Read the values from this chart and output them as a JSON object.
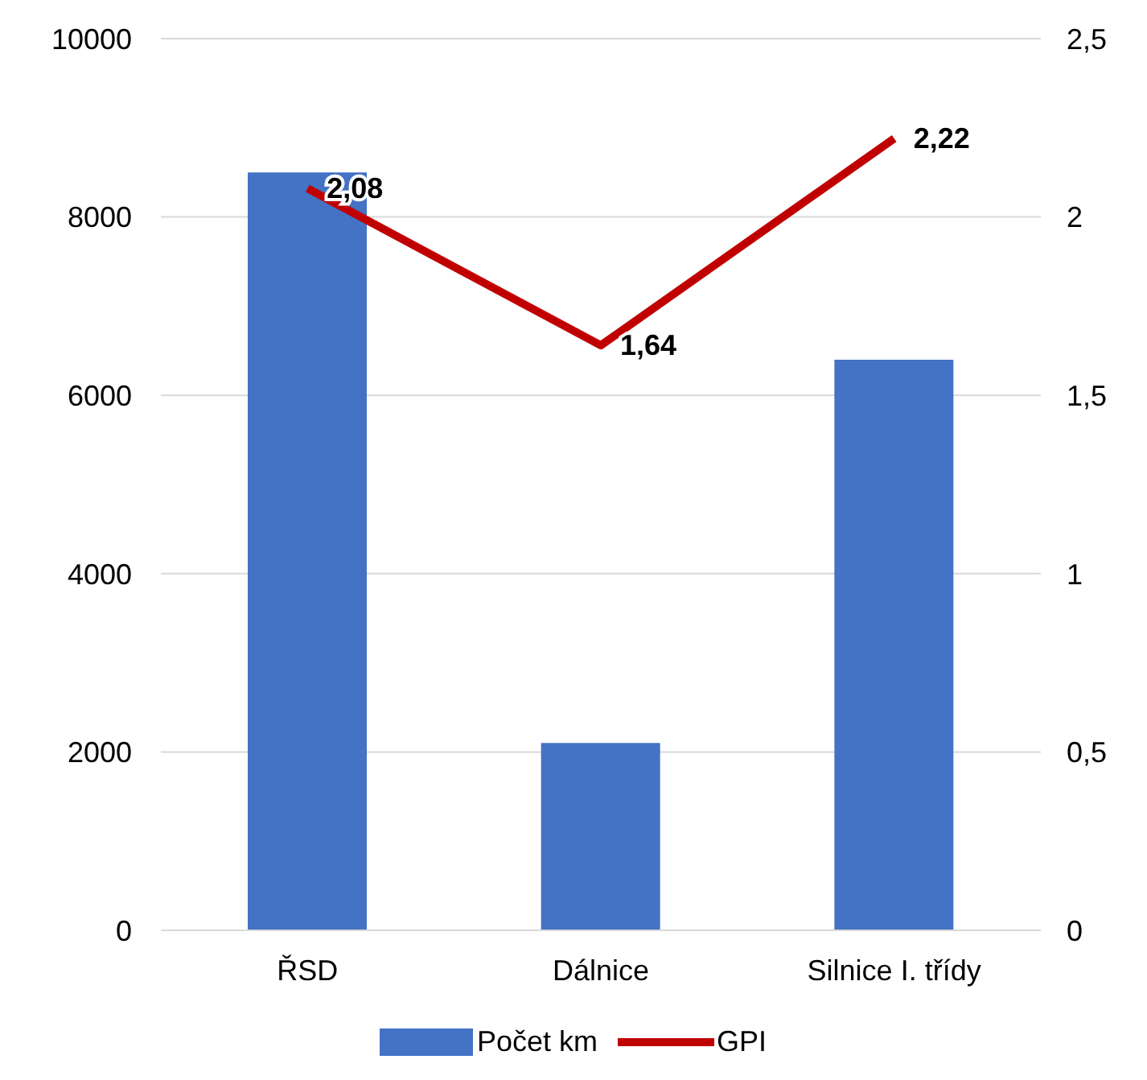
{
  "chart_data": {
    "type": "bar",
    "categories": [
      "ŘSD",
      "Dálnice",
      "Silnice I. třídy"
    ],
    "series": [
      {
        "name": "Počet km",
        "color": "#4472c4",
        "values": [
          8500,
          2100,
          6400
        ]
      },
      {
        "name": "GPI",
        "type": "line",
        "axis": "y2",
        "color": "#c00000",
        "values": [
          2.08,
          1.64,
          2.22
        ],
        "value_labels": [
          "2,08",
          "1,64",
          "2,22"
        ]
      }
    ],
    "ylim": [
      0,
      10000
    ],
    "yticks": [
      0,
      2000,
      4000,
      6000,
      8000,
      10000
    ],
    "y2lim": [
      0,
      2.5
    ],
    "y2ticks": [
      0,
      {
        "value": 0.5,
        "label": "0,5"
      },
      1,
      {
        "value": 1.5,
        "label": "1,5"
      },
      2,
      {
        "value": 2.5,
        "label": "2,5"
      }
    ],
    "grid": "y",
    "legend": "bottom",
    "marker": "none",
    "line_style": "solid"
  }
}
